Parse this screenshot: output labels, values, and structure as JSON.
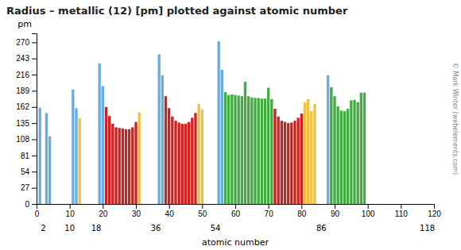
{
  "chart_data": {
    "type": "bar",
    "title": "Radius  –  metallic (12) [pm] plotted against atomic number",
    "xlabel": "atomic number",
    "ylabel": "pm",
    "x": [
      1,
      3,
      4,
      11,
      12,
      13,
      19,
      20,
      21,
      22,
      23,
      24,
      25,
      26,
      27,
      28,
      29,
      30,
      31,
      37,
      38,
      39,
      40,
      41,
      42,
      43,
      44,
      45,
      46,
      47,
      48,
      49,
      50,
      55,
      56,
      57,
      58,
      59,
      60,
      61,
      62,
      63,
      64,
      65,
      66,
      67,
      68,
      69,
      70,
      71,
      72,
      73,
      74,
      75,
      76,
      77,
      78,
      79,
      80,
      81,
      82,
      83,
      84,
      88,
      89,
      90,
      91,
      92,
      93,
      94,
      95,
      96,
      97,
      98,
      99
    ],
    "values": [
      161,
      152,
      113,
      191,
      160,
      143,
      235,
      197,
      162,
      147,
      134,
      128,
      127,
      126,
      125,
      125,
      128,
      137,
      153,
      250,
      215,
      180,
      160,
      146,
      139,
      136,
      134,
      134,
      137,
      144,
      152,
      167,
      158,
      272,
      224,
      187,
      182,
      183,
      182,
      181,
      180,
      204,
      180,
      178,
      177,
      177,
      176,
      176,
      194,
      175,
      159,
      146,
      139,
      137,
      135,
      136,
      139,
      144,
      151,
      170,
      175,
      155,
      167,
      215,
      195,
      180,
      163,
      156,
      155,
      159,
      173,
      174,
      170,
      186,
      186
    ],
    "colors": [
      "#6aacdc",
      "#6aacdc",
      "#6aacdc",
      "#6aacdc",
      "#6aacdc",
      "#f0c040",
      "#6aacdc",
      "#6aacdc",
      "#cc2222",
      "#cc2222",
      "#cc2222",
      "#cc2222",
      "#cc2222",
      "#cc2222",
      "#cc2222",
      "#cc2222",
      "#cc2222",
      "#cc2222",
      "#f0c040",
      "#6aacdc",
      "#6aacdc",
      "#cc2222",
      "#cc2222",
      "#cc2222",
      "#cc2222",
      "#cc2222",
      "#cc2222",
      "#cc2222",
      "#cc2222",
      "#cc2222",
      "#cc2222",
      "#f0c040",
      "#f0c040",
      "#6aacdc",
      "#6aacdc",
      "#44aa44",
      "#44aa44",
      "#44aa44",
      "#44aa44",
      "#44aa44",
      "#44aa44",
      "#44aa44",
      "#44aa44",
      "#44aa44",
      "#44aa44",
      "#44aa44",
      "#44aa44",
      "#44aa44",
      "#44aa44",
      "#44aa44",
      "#cc2222",
      "#cc2222",
      "#cc2222",
      "#cc2222",
      "#cc2222",
      "#cc2222",
      "#cc2222",
      "#cc2222",
      "#cc2222",
      "#f0c040",
      "#f0c040",
      "#f0c040",
      "#f0c040",
      "#6aacdc",
      "#44aa44",
      "#44aa44",
      "#44aa44",
      "#44aa44",
      "#44aa44",
      "#44aa44",
      "#44aa44",
      "#44aa44",
      "#44aa44",
      "#44aa44",
      "#44aa44"
    ],
    "xlim": [
      0,
      120
    ],
    "xticks": [
      0,
      10,
      20,
      30,
      40,
      50,
      60,
      70,
      80,
      90,
      100,
      110,
      120
    ],
    "ylim": [
      0,
      285
    ],
    "yticks": [
      0,
      27,
      54,
      81,
      108,
      135,
      162,
      189,
      216,
      243,
      270
    ],
    "grid": false,
    "annotations": [
      {
        "x": 2,
        "text": "2"
      },
      {
        "x": 10,
        "text": "10"
      },
      {
        "x": 18,
        "text": "18"
      },
      {
        "x": 36,
        "text": "36"
      },
      {
        "x": 54,
        "text": "54"
      },
      {
        "x": 86,
        "text": "86"
      },
      {
        "x": 118,
        "text": "118"
      },
      {
        "text": "© Mark Winter (webelements.com)"
      }
    ]
  }
}
